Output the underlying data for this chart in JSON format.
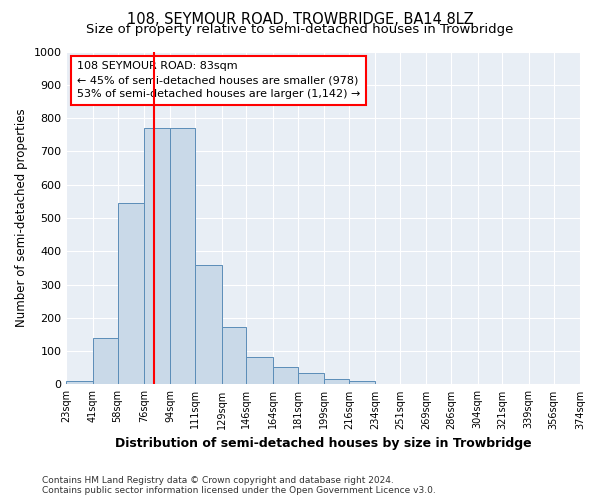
{
  "title": "108, SEYMOUR ROAD, TROWBRIDGE, BA14 8LZ",
  "subtitle": "Size of property relative to semi-detached houses in Trowbridge",
  "xlabel": "Distribution of semi-detached houses by size in Trowbridge",
  "ylabel": "Number of semi-detached properties",
  "bin_edges": [
    23,
    41,
    58,
    76,
    94,
    111,
    129,
    146,
    164,
    181,
    199,
    216,
    234,
    251,
    269,
    286,
    304,
    321,
    339,
    356,
    374
  ],
  "bar_heights": [
    10,
    140,
    545,
    770,
    770,
    358,
    172,
    82,
    52,
    35,
    17,
    10,
    0,
    0,
    0,
    0,
    0,
    0,
    0,
    0
  ],
  "bar_color": "#c9d9e8",
  "bar_edge_color": "#5b8db8",
  "red_line_x": 83,
  "annotation_line1": "108 SEYMOUR ROAD: 83sqm",
  "annotation_line2": "← 45% of semi-detached houses are smaller (978)",
  "annotation_line3": "53% of semi-detached houses are larger (1,142) →",
  "annotation_box_color": "white",
  "annotation_box_edge_color": "red",
  "ylim": [
    0,
    1000
  ],
  "yticks": [
    0,
    100,
    200,
    300,
    400,
    500,
    600,
    700,
    800,
    900,
    1000
  ],
  "bg_color": "#e8eef5",
  "grid_color": "#ffffff",
  "footer_text": "Contains HM Land Registry data © Crown copyright and database right 2024.\nContains public sector information licensed under the Open Government Licence v3.0.",
  "title_fontsize": 10.5,
  "subtitle_fontsize": 9.5,
  "annotation_fontsize": 8.0
}
